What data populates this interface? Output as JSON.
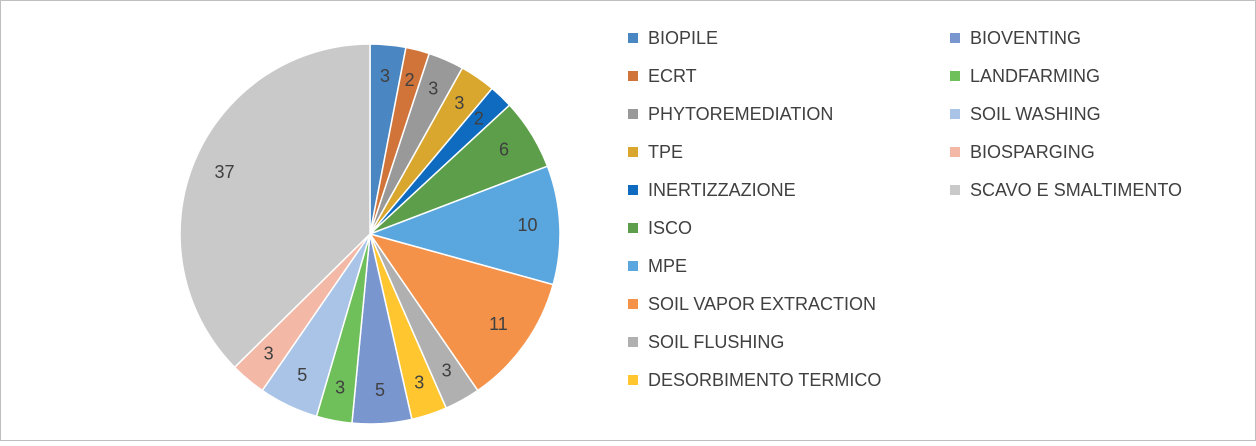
{
  "chart_data": {
    "type": "pie",
    "categories": [
      "BIOPILE",
      "ECRT",
      "PHYTOREMEDIATION",
      "TPE",
      "INERTIZZAZIONE",
      "ISCO",
      "MPE",
      "SOIL VAPOR EXTRACTION",
      "SOIL FLUSHING",
      "DESORBIMENTO TERMICO",
      "BIOVENTING",
      "LANDFARMING",
      "SOIL WASHING",
      "BIOSPARGING",
      "SCAVO E SMALTIMENTO"
    ],
    "values": [
      3,
      2,
      3,
      3,
      2,
      6,
      10,
      11,
      3,
      3,
      5,
      3,
      5,
      3,
      37
    ],
    "colors": [
      "#4a86c1",
      "#d0743a",
      "#999999",
      "#d9a62e",
      "#0e6bbf",
      "#5c9e4a",
      "#5aa6de",
      "#f4924a",
      "#b0b0b0",
      "#ffc630",
      "#7a96cf",
      "#6fbf5a",
      "#a9c4e6",
      "#f4b9a6",
      "#c9c9c9"
    ],
    "legend": "right"
  }
}
